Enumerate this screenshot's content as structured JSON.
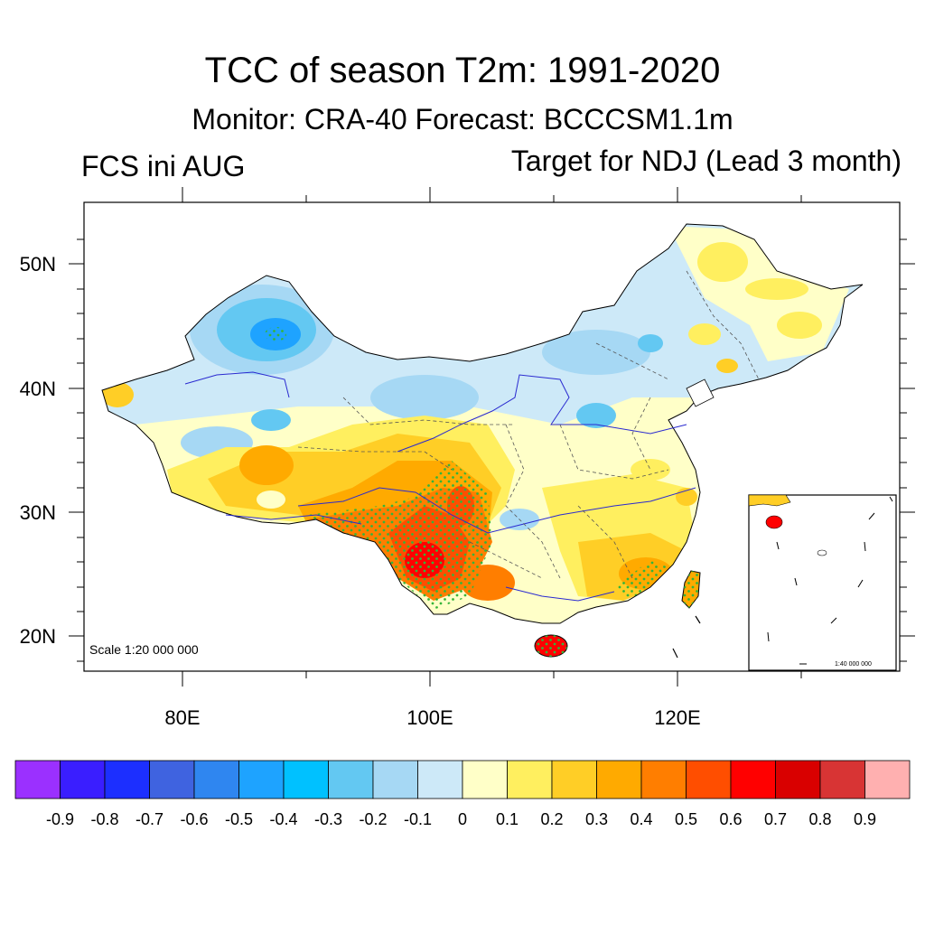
{
  "title": "TCC of season T2m: 1991-2020",
  "subtitle": "Monitor: CRA-40   Forecast: BCCCSM1.1m",
  "left_label": "FCS ini AUG",
  "right_label": "Target for NDJ (Lead 3 month)",
  "map": {
    "lat_ticks": [
      "50N",
      "40N",
      "30N",
      "20N"
    ],
    "lon_ticks": [
      "80E",
      "100E",
      "120E"
    ],
    "scale_text": "Scale 1:20 000 000",
    "inset_scale_text": "1:40 000 000"
  },
  "colorbar": {
    "labels": [
      "-0.9",
      "-0.8",
      "-0.7",
      "-0.6",
      "-0.5",
      "-0.4",
      "-0.3",
      "-0.2",
      "-0.1",
      "0",
      "0.1",
      "0.2",
      "0.3",
      "0.4",
      "0.5",
      "0.6",
      "0.7",
      "0.8",
      "0.9"
    ],
    "colors": [
      "#9b30ff",
      "#3a1eff",
      "#1c2fff",
      "#3f63e0",
      "#2f86f0",
      "#1ea3ff",
      "#00c1ff",
      "#63c8f2",
      "#a6d8f4",
      "#cde9f8",
      "#ffffc8",
      "#ffef5f",
      "#ffce26",
      "#ffaa00",
      "#ff7e00",
      "#ff4e00",
      "#ff0000",
      "#d90000",
      "#d83434",
      "#ffb0b0"
    ]
  }
}
